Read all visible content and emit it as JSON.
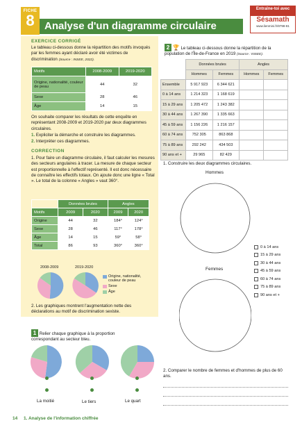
{
  "header": {
    "fiche_label": "FICHE",
    "fiche_number": "8",
    "title": "Analyse d'un diagramme circulaire",
    "badge_top": "Entraîne-toi avec",
    "badge_brand": "Sésamath",
    "badge_url": "www.lienmini.fr/8798-81"
  },
  "corrected_exercise": {
    "heading": "EXERCICE CORRIGÉ",
    "intro": "Le tableau ci-dessous donne la répartition des motifs invoqués par les femmes ayant déclaré avoir été victimes de discrimination",
    "source": "(Source : INSEE, 2022).",
    "table1": {
      "headers": [
        "Motifs",
        "2008-2009",
        "2019-2020"
      ],
      "rows": [
        [
          "Origine, nationalité, couleur de peau",
          "44",
          "32"
        ],
        [
          "Sexe",
          "28",
          "46"
        ],
        [
          "Âge",
          "14",
          "15"
        ]
      ]
    },
    "question_text": "On souhaite comparer les résultats de cette enquête en représentant 2008-2009 et 2019-2020 par deux diagrammes circulaires.",
    "q1_num": "1.",
    "q1": "Expliciter la démarche et construire les diagrammes.",
    "q2_num": "2.",
    "q2": "Interpréter ces diagrammes.",
    "correction_heading": "CORRECTION",
    "correction_1": "1. Pour faire un diagramme circulaire, il faut calculer les mesures des secteurs angulaires à tracer. La mesure de chaque secteur est proportionnelle à l'effectif représenté. Il est donc nécessaire de connaître les effectifs totaux. On ajoute donc une ligne « Total ». Le total de la colonne « Angles » vaut 360°.",
    "table2": {
      "group_headers": [
        "Données brutes",
        "Angles"
      ],
      "headers": [
        "Motifs",
        "2009",
        "2020",
        "2009",
        "2020"
      ],
      "rows": [
        [
          "Origine",
          "44",
          "32",
          "184°",
          "124°"
        ],
        [
          "Sexe",
          "28",
          "46",
          "117°",
          "178°"
        ],
        [
          "Âge",
          "14",
          "15",
          "59°",
          "58°"
        ],
        [
          "Total",
          "86",
          "93",
          "360°",
          "360°"
        ]
      ]
    },
    "pie_label_1": "2008-2009",
    "pie_label_2": "2019-2020",
    "legend": [
      "Origine, nationalité, couleur de peau",
      "Sexe",
      "Âge"
    ],
    "colors": {
      "origine": "#7ea9d9",
      "sexe": "#f1a9c7",
      "age": "#9fd0a7"
    },
    "correction_2": "2. Les graphiques montrent l'augmentation nette des déclarations au motif de discrimination sexiste."
  },
  "exercise1": {
    "number": "1",
    "instruction": "Relier chaque graphique à la proportion correspondant au secteur bleu.",
    "labels": [
      "La moitié",
      "Le tiers",
      "Le quart"
    ]
  },
  "exercise2": {
    "number": "2",
    "intro": "Le tableau ci-dessous donne la répartition de la population de l'Île-de-France en 2019",
    "source": "(Source : INSEE).",
    "group_headers": [
      "Données brutes",
      "Angles"
    ],
    "headers": [
      "Hommes",
      "Femmes",
      "Hommes",
      "Femmes"
    ],
    "rows": [
      [
        "Ensemble",
        "5 917 923",
        "6 344 621"
      ],
      [
        "0 à 14 ans",
        "1 214 323",
        "1 168 619"
      ],
      [
        "15 à 29 ans",
        "1 205 472",
        "1 243 382"
      ],
      [
        "30 à 44 ans",
        "1 267 390",
        "1 335 663"
      ],
      [
        "45 à 59 ans",
        "1 156 226",
        "1 216 157"
      ],
      [
        "60 à 74 ans",
        "752 305",
        "863 868"
      ],
      [
        "75 à 89 ans",
        "292 242",
        "434 503"
      ],
      [
        "90 ans et +",
        "29 965",
        "82 429"
      ]
    ],
    "q1": "1. Construire les deux diagrammes circulaires.",
    "hommes_label": "Hommes",
    "femmes_label": "Femmes",
    "age_options": [
      "0 à 14 ans",
      "15 à 29 ans",
      "30 à 44 ans",
      "45 à 59 ans",
      "60 à 74 ans",
      "75 à 89 ans",
      "90 ans et +"
    ],
    "q2": "2. Comparer le nombre de femmes et d'hommes de plus de 60 ans."
  },
  "footer": {
    "page_number": "14",
    "chapter": "1. Analyse de l'information chiffrée"
  }
}
